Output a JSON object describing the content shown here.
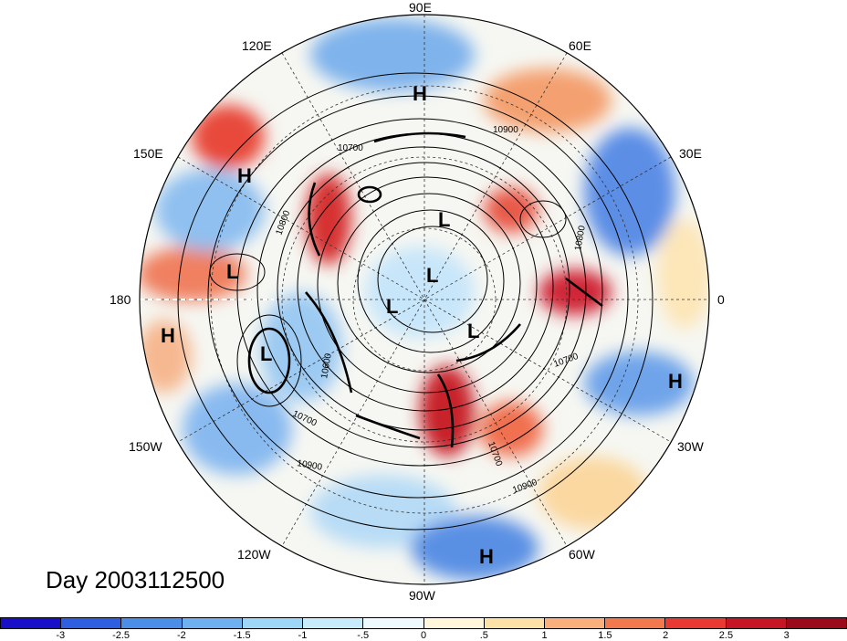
{
  "title": "Day 2003112500",
  "longitude_labels": [
    "90E",
    "60E",
    "30E",
    "0",
    "30W",
    "60W",
    "90W",
    "120W",
    "150W",
    "180",
    "150E",
    "120E"
  ],
  "contour_labels": [
    "10900",
    "10700",
    "10800",
    "10600",
    "10700",
    "10800",
    "10700",
    "10900",
    "10700",
    "10900"
  ],
  "pressure_centers": [
    {
      "type": "H",
      "label": "H"
    },
    {
      "type": "H",
      "label": "H"
    },
    {
      "type": "H",
      "label": "H"
    },
    {
      "type": "H",
      "label": "H"
    },
    {
      "type": "H",
      "label": "H"
    },
    {
      "type": "L",
      "label": "L"
    },
    {
      "type": "L",
      "label": "L"
    },
    {
      "type": "L",
      "label": "L"
    },
    {
      "type": "L",
      "label": "L"
    },
    {
      "type": "L",
      "label": "L"
    },
    {
      "type": "L",
      "label": "L"
    }
  ],
  "colorbar": {
    "colors": [
      "#1a0fc8",
      "#2d5fe0",
      "#4a8ee8",
      "#6fb0f0",
      "#9dd6f7",
      "#c8ecfb",
      "#eefaff",
      "#fff6dc",
      "#fde2a8",
      "#f9b07c",
      "#f2784e",
      "#e83a32",
      "#c61626",
      "#9a0a1a"
    ],
    "ticks": [
      "-3",
      "-2.5",
      "-2",
      "-1.5",
      "-1",
      "-.5",
      "0",
      ".5",
      "1",
      "1.5",
      "2",
      "2.5",
      "3"
    ]
  }
}
